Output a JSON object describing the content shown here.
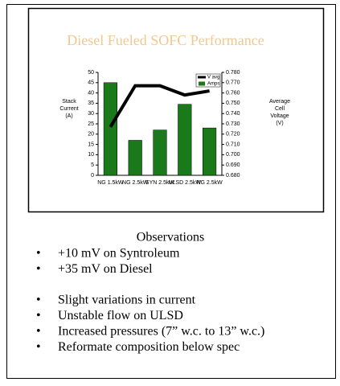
{
  "chart_data": {
    "type": "bar-line",
    "title": "Diesel Fueled SOFC Performance",
    "title_color": "#f0c890",
    "y_label": [
      "Stack",
      "Current",
      "(A)"
    ],
    "y2_label": [
      "Average",
      "Cell",
      "Voltage",
      "(V)"
    ],
    "categories": [
      "NG 1.5kW",
      "NG 2.5kW",
      "SYN 2.5kW",
      "ULSD 2.5kW",
      "NG 2.5kW"
    ],
    "series": [
      {
        "name": "V avg",
        "type": "line",
        "axis": "y2",
        "color": "#000000",
        "values": [
          0.727,
          0.767,
          0.767,
          0.758,
          0.762
        ]
      },
      {
        "name": "Amps",
        "type": "bar",
        "color": "#1a7a1a",
        "values": [
          45,
          17,
          22,
          34.5,
          23
        ]
      }
    ],
    "ylim": [
      0,
      50
    ],
    "yticks": [
      0,
      5,
      10,
      15,
      20,
      25,
      30,
      35,
      40,
      45,
      50
    ],
    "y2lim": [
      0.68,
      0.78
    ],
    "y2ticks": [
      {
        "value": 0.68,
        "label": "0.680"
      },
      {
        "value": 0.69,
        "label": "0.690"
      },
      {
        "value": 0.7,
        "label": "0.700"
      },
      {
        "value": 0.71,
        "label": "0.710"
      },
      {
        "value": 0.72,
        "label": "0.720"
      },
      {
        "value": 0.73,
        "label": "0.730"
      },
      {
        "value": 0.74,
        "label": "0.740"
      },
      {
        "value": 0.75,
        "label": "0.750"
      },
      {
        "value": 0.76,
        "label": "0.760"
      },
      {
        "value": 0.77,
        "label": "0.770"
      },
      {
        "value": 0.78,
        "label": "0.780"
      }
    ],
    "legend": "top-right"
  },
  "observations": {
    "heading": "Observations",
    "groups": [
      [
        "+10 mV on Syntroleum",
        "+35 mV on Diesel"
      ],
      [
        "Slight variations in current",
        "Unstable flow on ULSD",
        "Increased pressures (7” w.c. to 13” w.c.)",
        "Reformate composition below spec"
      ]
    ]
  }
}
